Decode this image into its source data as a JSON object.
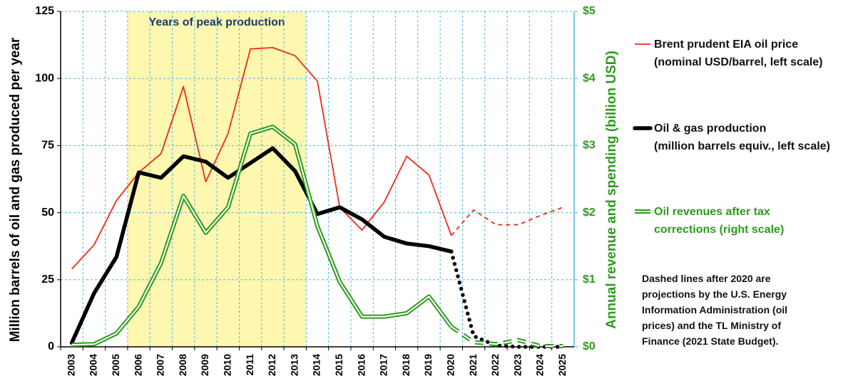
{
  "chart_data": {
    "type": "line",
    "ylabel": "Million barrels of oil and gas produced per year",
    "y2label": "Annual revenue and spending (billion USD)",
    "annotation": "Years of peak production",
    "shaded_range": [
      "2006",
      "2013"
    ],
    "dashed_after": "2020",
    "note": "Dashed lines after 2020 are\nprojections by the U.S. Energy\nInformation Administration (oil\nprices) and the TL Ministry of\nFinance (2021 State Budget).",
    "categories": [
      "2003",
      "2004",
      "2005",
      "2006",
      "2007",
      "2008",
      "2009",
      "2010",
      "2011",
      "2012",
      "2013",
      "2014",
      "2015",
      "2016",
      "2017",
      "2018",
      "2019",
      "2020",
      "2021",
      "2022",
      "2023",
      "2024",
      "2025"
    ],
    "ylim": [
      0,
      125
    ],
    "yticks": [
      0,
      25,
      50,
      75,
      100,
      125
    ],
    "y2lim": [
      0,
      5
    ],
    "y2ticks": [
      {
        "value": 0,
        "label": "$0"
      },
      {
        "value": 1,
        "label": "$1"
      },
      {
        "value": 2,
        "label": "$2"
      },
      {
        "value": 3,
        "label": "$3"
      },
      {
        "value": 4,
        "label": "$4"
      },
      {
        "value": 5,
        "label": "$5"
      }
    ],
    "grid": true,
    "series": [
      {
        "name": "Brent prudent EIA oil price\n(nominal USD/barrel, left scale)",
        "color": "#ee2a1a",
        "style": "thin",
        "values": [
          29,
          38,
          54.5,
          65,
          72,
          97,
          61.5,
          79.5,
          111,
          111.5,
          108.5,
          99,
          52,
          43.5,
          54,
          71,
          64,
          41.5,
          51,
          45.5,
          45.5,
          49,
          52
        ]
      },
      {
        "name": "Oil & gas production\n(million barrels equiv., left scale)",
        "color": "#000000",
        "style": "thick",
        "values": [
          1.5,
          20,
          33.5,
          65,
          63,
          71,
          69,
          63,
          68.5,
          74,
          65.5,
          49.5,
          52,
          47.5,
          41,
          38.5,
          37.5,
          35.5,
          4,
          0.5,
          0,
          0,
          0
        ]
      },
      {
        "name": "Oil revenues after tax\ncorrections (right scale)",
        "color": "#2e9a1e",
        "style": "double",
        "axis": "y2",
        "values": [
          0.03,
          0.04,
          0.2,
          0.6,
          1.25,
          2.25,
          1.7,
          2.08,
          3.18,
          3.28,
          3.02,
          1.8,
          0.97,
          0.45,
          0.45,
          0.5,
          0.75,
          0.3,
          0.07,
          0.04,
          0.1,
          0.01,
          0.01
        ]
      }
    ]
  }
}
